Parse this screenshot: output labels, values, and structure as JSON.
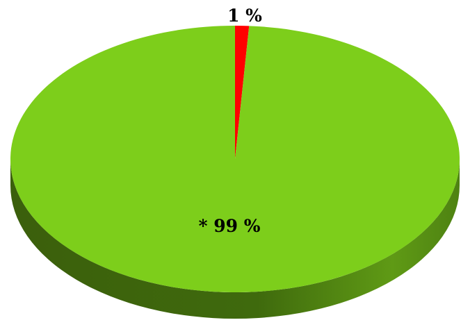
{
  "chart_data": {
    "type": "pie",
    "title": "",
    "slices": [
      {
        "label": "",
        "value": 1,
        "data_label": "1 %",
        "color": "#ff0000",
        "side_color": "#8b0000"
      },
      {
        "label": "",
        "value": 99,
        "data_label": "* 99 %",
        "color": "#7dce1b",
        "side_color": "#4a7a10"
      }
    ],
    "style": "3d-tilted",
    "legend": "none"
  }
}
